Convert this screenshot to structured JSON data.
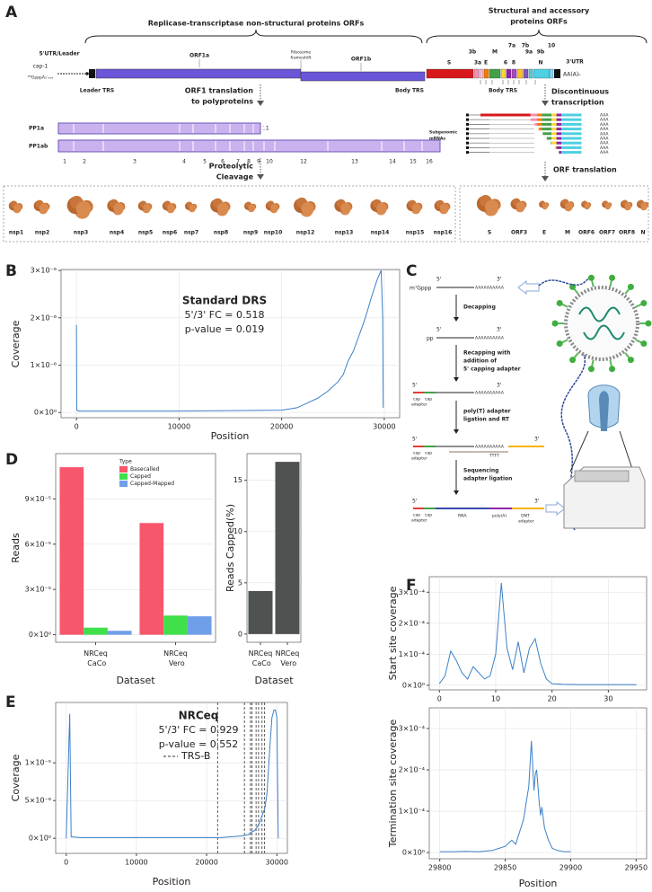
{
  "panel_letters": [
    "A",
    "B",
    "C",
    "D",
    "E",
    "F"
  ],
  "panel_A": {
    "replicase_label": "Replicase-transcriptase non-structural proteins ORFs",
    "structural_label": [
      "Structural and accessory",
      "proteins ORFs"
    ],
    "utr5": "5'UTR/Leader",
    "cap": "cap-1",
    "cap_structure": "⁷ᴹGpppA₂′ₒₘₑ",
    "orf1a": "ORF1a",
    "frameshift": [
      "Ribosome",
      "frameshift"
    ],
    "orf1b": "ORF1b",
    "leader_trs": "Leader TRS",
    "body_trs": "Body TRS",
    "body_trs_2": "Body TRS",
    "genes": [
      "S",
      "3a",
      "3b",
      "E",
      "M",
      "6",
      "7a",
      "7b",
      "8",
      "9a",
      "9b",
      "N",
      "10"
    ],
    "utr3": "3'UTR",
    "polya": "AA(A)ₙ",
    "orf1_translation": [
      "ORF1 translation",
      "to polyproteins"
    ],
    "discontinuous": [
      "Discontinuous",
      "transcription"
    ],
    "pp1a": "PP1a",
    "pp1ab": "PP1ab",
    "pp1a_end": "11",
    "pp_numbers": [
      "1",
      "2",
      "3",
      "4",
      "5",
      "6",
      "7",
      "8",
      "9",
      "10",
      "12",
      "13",
      "14",
      "15",
      "16"
    ],
    "cleavage": [
      "Proteolytic",
      "Cleavage"
    ],
    "subgenomic": [
      "Subgenomic",
      "mRNAs"
    ],
    "polya_short": "AAA",
    "orf_translation": "ORF translation",
    "nsps": [
      "nsp1",
      "nsp2",
      "nsp3",
      "nsp4",
      "nsp5",
      "nsp6",
      "nsp7",
      "nsp8",
      "nsp9",
      "nsp10",
      "nsp12",
      "nsp13",
      "nsp14",
      "nsp15",
      "nsp16"
    ],
    "structural_proteins": [
      "S",
      "ORF3",
      "E",
      "M",
      "ORF6",
      "ORF7",
      "ORF8",
      "N"
    ]
  },
  "panel_C": {
    "five": "5'",
    "three": "3'",
    "m7g": "m⁷Gppp",
    "polyA": "AAAAAAAAAA",
    "decapping": "Decapping",
    "pp": "pp",
    "recapping": [
      "Recapping with",
      "addition of",
      "5' capping adapter"
    ],
    "cap": "cap",
    "adapter": "adapter",
    "polyT": [
      "poly(T) adapter",
      "ligation and RT"
    ],
    "tttt": "TTTT",
    "sequencing": [
      "Sequencing",
      "adapter ligation"
    ],
    "rna": "RNA",
    "poly_a": "poly(A)",
    "ont": [
      "ONT",
      "adapter"
    ]
  },
  "chart_data": [
    {
      "type": "line",
      "title": "Standard DRS",
      "annotations": [
        "5'/3' FC = 0.518",
        "p-value = 0.019"
      ],
      "x_label": "Position",
      "y_label": "Coverage",
      "color": "#3d80c8",
      "grid": true,
      "x": [
        0,
        30,
        200,
        1000,
        5000,
        10000,
        15000,
        20000,
        21500,
        22500,
        23500,
        24500,
        25500,
        26000,
        26500,
        27000,
        27500,
        28000,
        28300,
        28700,
        29000,
        29300,
        29500,
        29700,
        29850,
        29900
      ],
      "values": [
        1.85e-06,
        5e-08,
        3e-08,
        3e-08,
        3e-08,
        3e-08,
        4e-08,
        5e-08,
        1e-07,
        2e-07,
        3e-07,
        4.5e-07,
        6.5e-07,
        8e-07,
        1.1e-06,
        1.3e-06,
        1.6e-06,
        1.9e-06,
        2.1e-06,
        2.4e-06,
        2.6e-06,
        2.8e-06,
        2.9e-06,
        3e-06,
        2e-06,
        1e-07
      ],
      "xlim": [
        -1500,
        31500
      ],
      "xticks": [
        0,
        10000,
        20000,
        30000
      ],
      "ylim": [
        -1.1e-07,
        3.02e-06
      ],
      "yticks": [
        {
          "value": 0,
          "label": "0×10⁰"
        },
        {
          "value": 1e-06,
          "label": "1×10⁻⁶"
        },
        {
          "value": 2e-06,
          "label": "2×10⁻⁶"
        },
        {
          "value": 3e-06,
          "label": "3×10⁻⁶"
        }
      ]
    },
    {
      "type": "bar",
      "x_label": "Dataset",
      "y_label": "Reads",
      "legend_title": "Type",
      "grid": true,
      "categories": [
        "NRCeq CaCo",
        "NRCeq Vero"
      ],
      "series": [
        {
          "name": "Basecalled",
          "color": "#f8566b",
          "values": [
            0.000111,
            7.4e-05
          ]
        },
        {
          "name": "Capped",
          "color": "#3fe04a",
          "values": [
            4.7e-06,
            1.27e-05
          ]
        },
        {
          "name": "Capped-Mapped",
          "color": "#6f9fe8",
          "values": [
            2.6e-06,
            1.22e-05
          ]
        }
      ],
      "ylim": [
        -5e-06,
        0.00012
      ],
      "yticks": [
        {
          "value": 0,
          "label": "0×10⁰"
        },
        {
          "value": 3e-05,
          "label": "3×10⁻⁵"
        },
        {
          "value": 6e-05,
          "label": "6×10⁻⁵"
        },
        {
          "value": 9e-05,
          "label": "9×10⁻⁵"
        }
      ]
    },
    {
      "type": "bar",
      "x_label": "Dataset",
      "y_label": "Reads Capped(%)",
      "color": "#4e5250",
      "grid": true,
      "categories": [
        "NRCeq CaCo",
        "NRCeq Vero"
      ],
      "values": [
        4.2,
        16.8
      ],
      "ylim": [
        -0.8,
        17.6
      ],
      "yticks": [
        0,
        5,
        10,
        15
      ]
    },
    {
      "type": "line",
      "title": "NRCeq",
      "annotations": [
        "5'/3' FC = 0.929",
        "p-value = 0.552"
      ],
      "x_label": "Position",
      "y_label": "Coverage",
      "color": "#3d80c8",
      "grid": true,
      "vlines": [
        21560,
        25380,
        26240,
        26470,
        27040,
        27390,
        27890,
        28260
      ],
      "vline_label": "TRS-B",
      "x": [
        0,
        500,
        700,
        2000,
        10000,
        20000,
        22000,
        25000,
        26000,
        26300,
        26800,
        27200,
        27500,
        27900,
        28300,
        28600,
        29000,
        29300,
        29600,
        29800,
        30000,
        30200
      ],
      "values": [
        0,
        1.65e-05,
        2e-07,
        1e-07,
        1e-07,
        1e-07,
        1e-07,
        3e-07,
        5e-07,
        8e-07,
        1e-06,
        1.5e-06,
        2e-06,
        3e-06,
        4e-06,
        6e-06,
        1.2e-05,
        1.6e-05,
        1.7e-05,
        1.7e-05,
        1.6e-05,
        0
      ],
      "xlim": [
        -1500,
        31500
      ],
      "xticks": [
        0,
        10000,
        20000,
        30000
      ],
      "ylim": [
        -2e-06,
        1.8e-05
      ],
      "yticks": [
        {
          "value": 0,
          "label": "0×10⁰"
        },
        {
          "value": 5e-06,
          "label": "5×10⁻⁶"
        },
        {
          "value": 1e-05,
          "label": "1×10⁻⁵"
        }
      ]
    },
    {
      "type": "line",
      "y_label": "Start site coverage",
      "color": "#3d80c8",
      "grid": true,
      "x": [
        0,
        1,
        2,
        3,
        4,
        5,
        6,
        7,
        8,
        9,
        10,
        11,
        12,
        13,
        14,
        15,
        16,
        17,
        18,
        19,
        20,
        22,
        25,
        30,
        35
      ],
      "values": [
        5e-06,
        3e-05,
        0.00011,
        8e-05,
        4e-05,
        2e-05,
        6e-05,
        4e-05,
        2e-05,
        3e-05,
        0.0001,
        0.00033,
        0.00012,
        5e-05,
        0.00014,
        4e-05,
        0.00012,
        0.00015,
        7e-05,
        2e-05,
        5e-06,
        3e-06,
        2e-06,
        2e-06,
        2e-06
      ],
      "xlim": [
        -1.8,
        36.8
      ],
      "xticks": [
        0,
        10,
        20,
        30
      ],
      "ylim": [
        -1.5e-05,
        0.00035
      ],
      "yticks": [
        {
          "value": 0,
          "label": "0×10⁰"
        },
        {
          "value": 0.0001,
          "label": "1×10⁻⁴"
        },
        {
          "value": 0.0002,
          "label": "2×10⁻⁴"
        },
        {
          "value": 0.0003,
          "label": "3×10⁻⁴"
        }
      ]
    },
    {
      "type": "line",
      "x_label": "Position",
      "y_label": "Termination site coverage",
      "color": "#3d80c8",
      "grid": true,
      "x": [
        29800,
        29810,
        29820,
        29830,
        29840,
        29845,
        29850,
        29855,
        29858,
        29861,
        29864,
        29866,
        29868,
        29870,
        29871,
        29872,
        29873,
        29874,
        29875,
        29876,
        29877,
        29878,
        29880,
        29883,
        29886,
        29890,
        29895,
        29900
      ],
      "values": [
        2e-06,
        2e-06,
        3e-06,
        2e-06,
        5e-06,
        1e-05,
        1.5e-05,
        3e-05,
        2e-05,
        5e-05,
        8e-05,
        0.00012,
        0.00016,
        0.00027,
        0.00021,
        0.00015,
        0.00019,
        0.0002,
        0.00016,
        0.00012,
        9e-05,
        0.00011,
        6e-05,
        3e-05,
        1e-05,
        5e-06,
        2e-06,
        2e-06
      ],
      "xlim": [
        29792,
        29958
      ],
      "xticks": [
        29800,
        29850,
        29900,
        29950
      ],
      "ylim": [
        -1.5e-05,
        0.00035
      ],
      "yticks": [
        {
          "value": 0,
          "label": "0×10⁰"
        },
        {
          "value": 0.0001,
          "label": "1×10⁻⁴"
        },
        {
          "value": 0.0002,
          "label": "2×10⁻⁴"
        },
        {
          "value": 0.0003,
          "label": "3×10⁻⁴"
        }
      ]
    }
  ]
}
